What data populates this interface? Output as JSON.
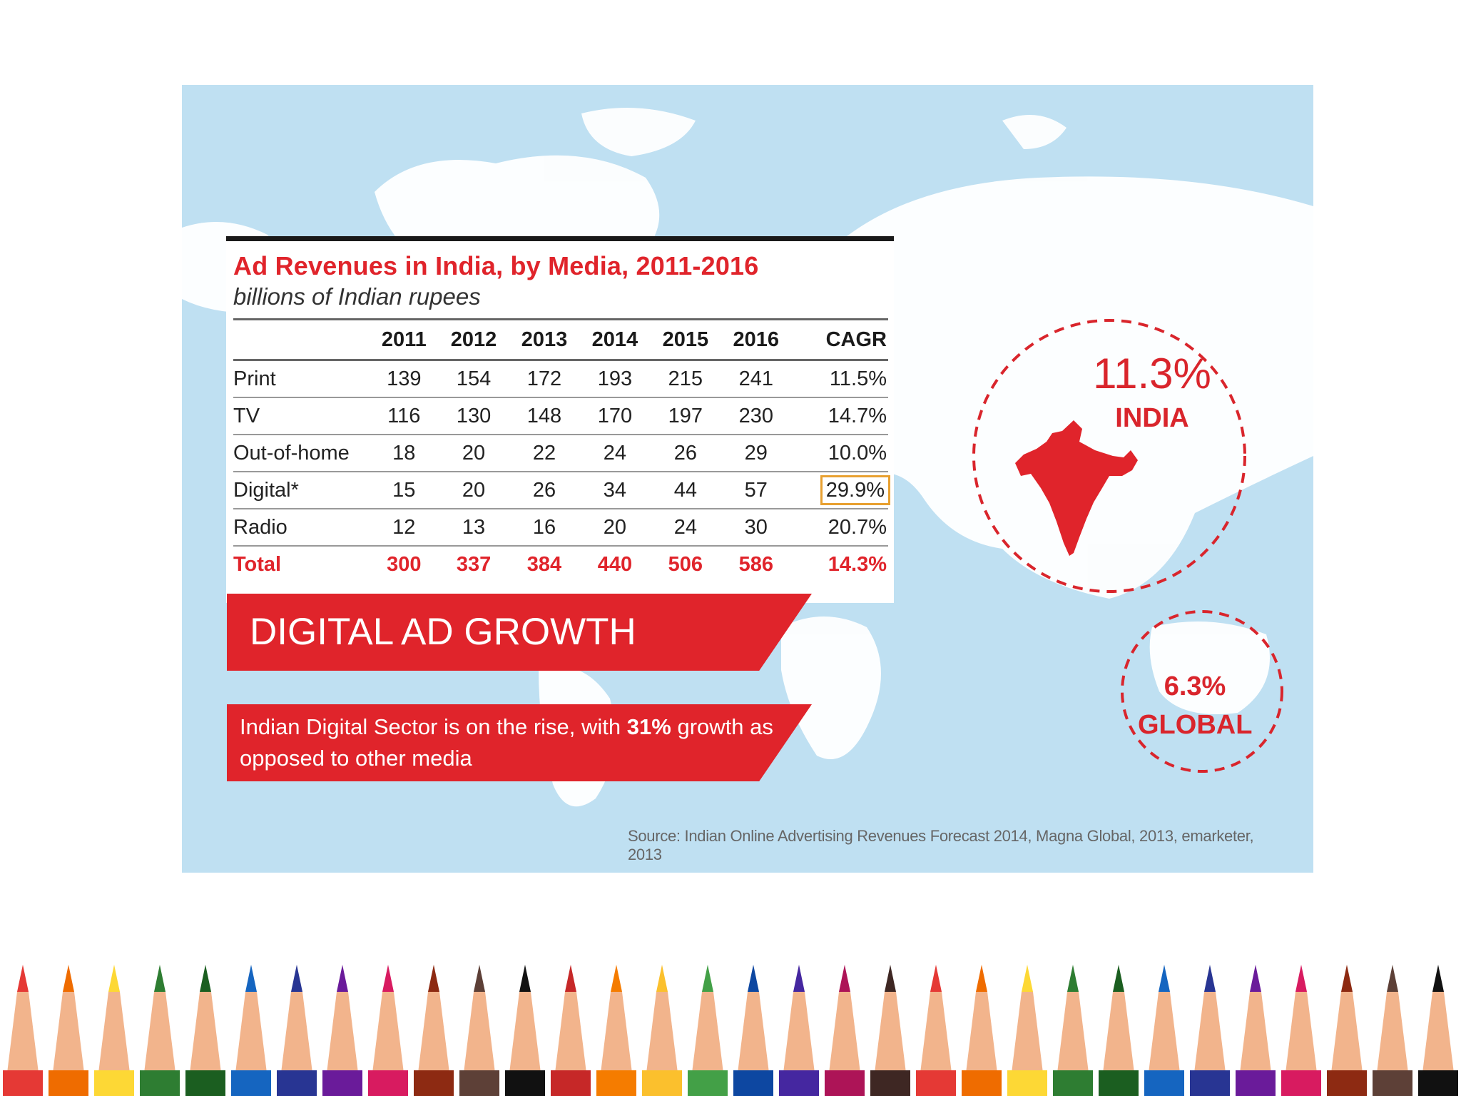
{
  "table": {
    "title": "Ad Revenues in India, by Media, 2011-2016",
    "subtitle": "billions of Indian rupees",
    "headers": [
      "",
      "2011",
      "2012",
      "2013",
      "2014",
      "2015",
      "2016",
      "CAGR"
    ],
    "rows": [
      {
        "label": "Print",
        "values": [
          "139",
          "154",
          "172",
          "193",
          "215",
          "241"
        ],
        "cagr": "11.5%"
      },
      {
        "label": "TV",
        "values": [
          "116",
          "130",
          "148",
          "170",
          "197",
          "230"
        ],
        "cagr": "14.7%"
      },
      {
        "label": "Out-of-home",
        "values": [
          "18",
          "20",
          "22",
          "24",
          "26",
          "29"
        ],
        "cagr": "10.0%"
      },
      {
        "label": "Digital*",
        "values": [
          "15",
          "20",
          "26",
          "34",
          "44",
          "57"
        ],
        "cagr": "29.9%"
      },
      {
        "label": "Radio",
        "values": [
          "12",
          "13",
          "16",
          "20",
          "24",
          "30"
        ],
        "cagr": "20.7%"
      }
    ],
    "total": {
      "label": "Total",
      "values": [
        "300",
        "337",
        "384",
        "440",
        "506",
        "586"
      ],
      "cagr": "14.3%"
    }
  },
  "banner": {
    "title": "DIGITAL AD GROWTH"
  },
  "note": {
    "text_before": "Indian Digital Sector is on the rise, with",
    "highlight": "31%",
    "text_after": "growth as opposed to other media"
  },
  "india": {
    "percent": "11.3%",
    "label": "INDIA"
  },
  "global": {
    "percent": "6.3%",
    "label": "GLOBAL"
  },
  "source": "Source: Indian Online Advertising Revenues Forecast 2014, Magna Global, 2013, emarketer, 2013",
  "colors": {
    "accent_red": "#e0242b",
    "map_water": "#bfe0f2",
    "highlight_box": "#e8a030"
  }
}
